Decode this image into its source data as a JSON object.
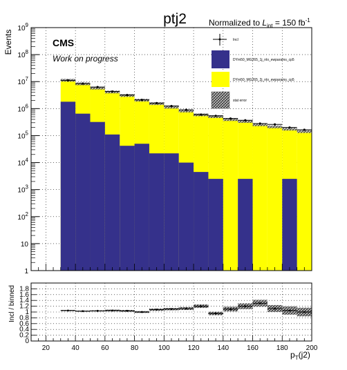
{
  "chart_data": {
    "type": "bar",
    "title": "ptj2",
    "normalization": "Normalized to L_int = 150 fb^-1",
    "cms_label": "CMS",
    "cms_sublabel": "Work on progress",
    "xlabel": "p_T(j2)",
    "ylabel": "Events",
    "ratio_ylabel": "Incl / binned",
    "xlim": [
      10,
      200
    ],
    "ylim": [
      1,
      1000000000
    ],
    "yscale": "log",
    "grid": true,
    "legend_position": "top-right",
    "bin_edges": [
      30,
      40,
      50,
      60,
      70,
      80,
      90,
      100,
      110,
      120,
      130,
      140,
      150,
      160,
      170,
      180,
      190,
      200
    ],
    "series": [
      {
        "name": "DYm50_MG265_1j_nlo_ewparams_cp5",
        "color": "#35318b",
        "values": [
          1800000,
          650000,
          320000,
          110000,
          42000,
          50000,
          22000,
          22000,
          10000,
          4500,
          2500,
          1,
          2500,
          1,
          1,
          2500,
          1
        ]
      },
      {
        "name": "DYm50_MG265_2j_nlo_ewparams_cp5",
        "color": "#ffff00",
        "values": [
          9400000,
          7600000,
          5400000,
          4000000,
          3000000,
          2000000,
          1500000,
          1100000,
          800000,
          580000,
          500000,
          390000,
          330000,
          250000,
          210000,
          170000,
          140000
        ]
      }
    ],
    "incl_values": [
      11000000,
      8500000,
      6300000,
      4300000,
      3200000,
      2100000,
      1600000,
      1250000,
      900000,
      600000,
      540000,
      430000,
      370000,
      280000,
      260000,
      200000,
      165000
    ],
    "incl_label": "Incl",
    "stat_error_label": "stat error",
    "ratio_values": [
      1.05,
      1.03,
      1.04,
      1.05,
      1.04,
      1.0,
      1.08,
      1.1,
      1.12,
      1.2,
      0.95,
      1.1,
      1.2,
      1.3,
      1.12,
      1.05,
      1.0
    ],
    "ratio_errors": [
      0.02,
      0.02,
      0.02,
      0.03,
      0.03,
      0.03,
      0.04,
      0.04,
      0.05,
      0.06,
      0.06,
      0.08,
      0.1,
      0.12,
      0.12,
      0.14,
      0.15
    ],
    "ratio_ylim": [
      0,
      2
    ],
    "x_ticks": [
      "20",
      "40",
      "60",
      "80",
      "100",
      "120",
      "140",
      "160",
      "180",
      "200"
    ],
    "y_ticks": [
      "1",
      "10",
      "10^2",
      "10^3",
      "10^4",
      "10^5",
      "10^6",
      "10^7",
      "10^8",
      "10^9"
    ],
    "ratio_ticks": [
      "0",
      "0.2",
      "0.4",
      "0.6",
      "0.8",
      "1",
      "1.2",
      "1.4",
      "1.6",
      "1.8"
    ]
  }
}
